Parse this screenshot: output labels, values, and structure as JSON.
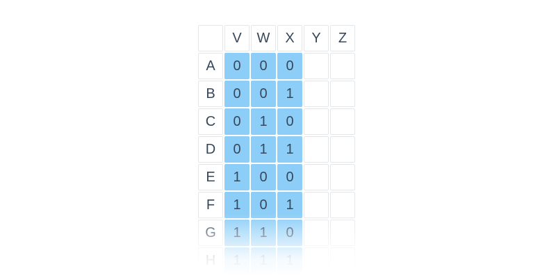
{
  "chart_data": {
    "type": "table",
    "title": "",
    "corner_label": "",
    "columns": [
      "V",
      "W",
      "X",
      "Y",
      "Z"
    ],
    "rows": [
      {
        "label": "A",
        "values": [
          "0",
          "0",
          "0",
          "",
          ""
        ]
      },
      {
        "label": "B",
        "values": [
          "0",
          "0",
          "1",
          "",
          ""
        ]
      },
      {
        "label": "C",
        "values": [
          "0",
          "1",
          "0",
          "",
          ""
        ]
      },
      {
        "label": "D",
        "values": [
          "0",
          "1",
          "1",
          "",
          ""
        ]
      },
      {
        "label": "E",
        "values": [
          "1",
          "0",
          "0",
          "",
          ""
        ]
      },
      {
        "label": "F",
        "values": [
          "1",
          "0",
          "1",
          "",
          ""
        ]
      },
      {
        "label": "G",
        "values": [
          "1",
          "1",
          "0",
          "",
          ""
        ]
      },
      {
        "label": "H",
        "values": [
          "1",
          "1",
          "1",
          "",
          ""
        ]
      }
    ],
    "highlighted_columns": [
      "V",
      "W",
      "X"
    ],
    "faded_rows": [
      "G",
      "H"
    ]
  },
  "colors": {
    "highlight": "#8dcef8",
    "text": "#37475a",
    "grid": "#e4e7ea",
    "background": "#ffffff"
  }
}
